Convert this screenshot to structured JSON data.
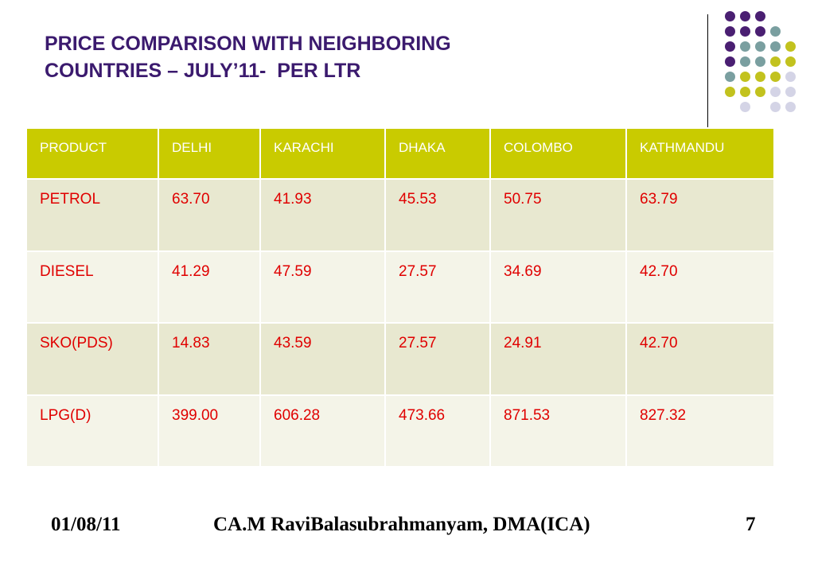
{
  "slide": {
    "title_line1": "PRICE COMPARISON WITH NEIGHBORING",
    "title_line2": "COUNTRIES – JULY’11-  PER LTR"
  },
  "colors": {
    "title": "#3b1a6e",
    "header_bg": "#c9cb00",
    "row_odd_bg": "#e8e8d0",
    "row_even_bg": "#f4f4e8",
    "cell_text": "#e00000",
    "dot_purple": "#4a1f72",
    "dot_teal": "#7a9fa0",
    "dot_olive": "#c2c21e",
    "dot_lavender": "#d4d4e6"
  },
  "table": {
    "headers": [
      "PRODUCT",
      "DELHI",
      "KARACHI",
      "DHAKA",
      "COLOMBO",
      "KATHMANDU"
    ],
    "rows": [
      [
        "PETROL",
        "63.70",
        "41.93",
        "45.53",
        "50.75",
        "63.79"
      ],
      [
        "DIESEL",
        "41.29",
        "47.59",
        "27.57",
        "34.69",
        "42.70"
      ],
      [
        "SKO(PDS)",
        "14.83",
        "43.59",
        "27.57",
        "24.91",
        "42.70"
      ],
      [
        "LPG(D)",
        "399.00",
        "606.28",
        "473.66",
        "871.53",
        "827.32"
      ]
    ]
  },
  "footer": {
    "date": "01/08/11",
    "author": "CA.M RaviBalasubrahmanyam, DMA(ICA)",
    "page_number": "7"
  }
}
